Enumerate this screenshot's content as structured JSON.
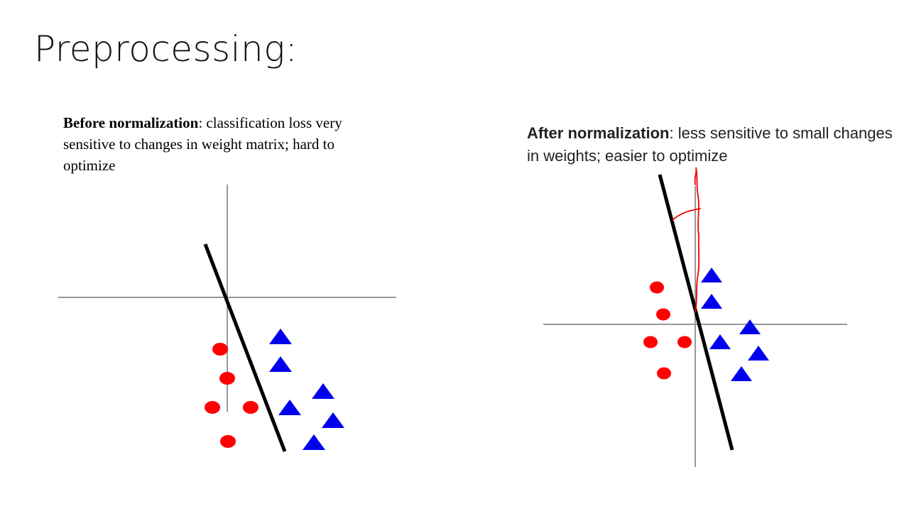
{
  "slide": {
    "title": "Preprocessing:"
  },
  "before": {
    "caption_bold": "Before normalization",
    "caption_rest": ": classification loss very sensitive to changes in weight matrix; hard to optimize"
  },
  "after": {
    "caption_bold": "After normalization",
    "caption_rest": ": less sensitive to small changes in weights; easier to optimize"
  },
  "colors": {
    "class_a": "#ff0000",
    "class_b": "#0000ee",
    "boundary": "#000000",
    "axes": "#999999",
    "annotation": "#ee0000"
  }
}
